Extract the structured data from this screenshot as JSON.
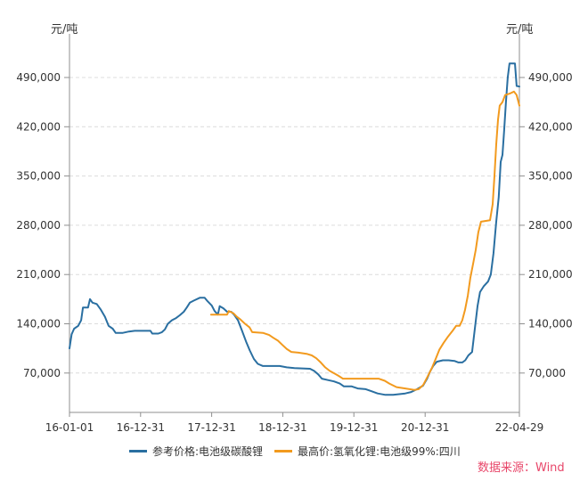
{
  "chart_data": {
    "type": "line",
    "ylabel": "元/吨",
    "y2label": "元/吨",
    "xlim": [
      "2016-01-01",
      "2022-04-29"
    ],
    "ylim": [
      14000,
      552000
    ],
    "x_tick_labels": [
      "16-01-01",
      "16-12-31",
      "17-12-31",
      "18-12-31",
      "19-12-31",
      "20-12-31",
      "22-04-29"
    ],
    "y_tick_labels": [
      "70,000",
      "140,000",
      "210,000",
      "280,000",
      "350,000",
      "420,000",
      "490,000"
    ],
    "grid": true,
    "legend": "bottom",
    "series": [
      {
        "name": "参考价格:电池级碳酸锂",
        "color": "#2a6fa1",
        "points": [
          [
            "2016-01-01",
            105000
          ],
          [
            "2016-01-12",
            125000
          ],
          [
            "2016-01-25",
            133000
          ],
          [
            "2016-02-15",
            137000
          ],
          [
            "2016-03-01",
            145000
          ],
          [
            "2016-03-10",
            163000
          ],
          [
            "2016-04-05",
            163000
          ],
          [
            "2016-04-15",
            175000
          ],
          [
            "2016-04-28",
            170000
          ],
          [
            "2016-05-20",
            168000
          ],
          [
            "2016-06-10",
            160000
          ],
          [
            "2016-07-01",
            150000
          ],
          [
            "2016-07-20",
            137000
          ],
          [
            "2016-08-10",
            133000
          ],
          [
            "2016-08-25",
            127000
          ],
          [
            "2016-10-01",
            127000
          ],
          [
            "2016-11-01",
            129000
          ],
          [
            "2016-12-01",
            130000
          ],
          [
            "2017-02-20",
            130000
          ],
          [
            "2017-03-01",
            126000
          ],
          [
            "2017-04-01",
            126000
          ],
          [
            "2017-04-20",
            128000
          ],
          [
            "2017-05-05",
            132000
          ],
          [
            "2017-05-20",
            140000
          ],
          [
            "2017-06-10",
            145000
          ],
          [
            "2017-07-01",
            148000
          ],
          [
            "2017-07-20",
            152000
          ],
          [
            "2017-08-10",
            157000
          ],
          [
            "2017-08-25",
            163000
          ],
          [
            "2017-09-10",
            170000
          ],
          [
            "2017-10-01",
            173000
          ],
          [
            "2017-11-01",
            177000
          ],
          [
            "2017-11-25",
            177000
          ],
          [
            "2017-12-10",
            172000
          ],
          [
            "2017-12-31",
            166000
          ],
          [
            "2018-01-15",
            158000
          ],
          [
            "2018-02-01",
            153000
          ],
          [
            "2018-02-10",
            165000
          ],
          [
            "2018-03-01",
            162000
          ],
          [
            "2018-03-20",
            157000
          ],
          [
            "2018-04-10",
            157000
          ],
          [
            "2018-04-25",
            153000
          ],
          [
            "2018-05-15",
            145000
          ],
          [
            "2018-06-05",
            130000
          ],
          [
            "2018-06-25",
            115000
          ],
          [
            "2018-07-15",
            102000
          ],
          [
            "2018-08-05",
            90000
          ],
          [
            "2018-08-25",
            83000
          ],
          [
            "2018-09-20",
            80000
          ],
          [
            "2018-12-15",
            80000
          ],
          [
            "2019-01-20",
            78000
          ],
          [
            "2019-03-01",
            77000
          ],
          [
            "2019-05-20",
            76000
          ],
          [
            "2019-06-10",
            73000
          ],
          [
            "2019-07-01",
            68000
          ],
          [
            "2019-07-20",
            62000
          ],
          [
            "2019-08-20",
            60000
          ],
          [
            "2019-09-20",
            58000
          ],
          [
            "2019-10-20",
            55000
          ],
          [
            "2019-11-10",
            51000
          ],
          [
            "2019-12-20",
            51000
          ],
          [
            "2020-01-20",
            48000
          ],
          [
            "2020-03-01",
            47000
          ],
          [
            "2020-04-01",
            44000
          ],
          [
            "2020-05-01",
            41000
          ],
          [
            "2020-06-10",
            39000
          ],
          [
            "2020-07-20",
            39000
          ],
          [
            "2020-08-20",
            40000
          ],
          [
            "2020-09-20",
            41000
          ],
          [
            "2020-10-20",
            43000
          ],
          [
            "2020-11-20",
            47000
          ],
          [
            "2020-12-20",
            52000
          ],
          [
            "2021-01-10",
            62000
          ],
          [
            "2021-01-25",
            72000
          ],
          [
            "2021-02-10",
            80000
          ],
          [
            "2021-03-01",
            86000
          ],
          [
            "2021-04-01",
            88000
          ],
          [
            "2021-05-01",
            88000
          ],
          [
            "2021-06-01",
            87000
          ],
          [
            "2021-06-20",
            85000
          ],
          [
            "2021-07-10",
            85000
          ],
          [
            "2021-07-25",
            88000
          ],
          [
            "2021-08-10",
            95000
          ],
          [
            "2021-08-29",
            100000
          ],
          [
            "2021-09-12",
            132000
          ],
          [
            "2021-09-26",
            165000
          ],
          [
            "2021-10-09",
            185000
          ],
          [
            "2021-10-27",
            193000
          ],
          [
            "2021-11-19",
            200000
          ],
          [
            "2021-12-03",
            210000
          ],
          [
            "2021-12-17",
            240000
          ],
          [
            "2021-12-31",
            285000
          ],
          [
            "2022-01-13",
            320000
          ],
          [
            "2022-01-23",
            370000
          ],
          [
            "2022-02-01",
            380000
          ],
          [
            "2022-02-10",
            415000
          ],
          [
            "2022-02-19",
            455000
          ],
          [
            "2022-02-28",
            490000
          ],
          [
            "2022-03-09",
            510000
          ],
          [
            "2022-04-06",
            510000
          ],
          [
            "2022-04-15",
            478000
          ],
          [
            "2022-04-29",
            477000
          ]
        ]
      },
      {
        "name": "最高价:氢氧化锂:电池级99%:四川",
        "color": "#f29a1e",
        "points": [
          [
            "2017-12-28",
            153000
          ],
          [
            "2018-03-20",
            153000
          ],
          [
            "2018-03-29",
            158000
          ],
          [
            "2018-04-21",
            155000
          ],
          [
            "2018-05-09",
            150000
          ],
          [
            "2018-05-28",
            146000
          ],
          [
            "2018-06-20",
            140000
          ],
          [
            "2018-07-13",
            135000
          ],
          [
            "2018-07-27",
            128000
          ],
          [
            "2018-09-20",
            127000
          ],
          [
            "2018-10-22",
            124000
          ],
          [
            "2018-11-13",
            120000
          ],
          [
            "2018-12-06",
            116000
          ],
          [
            "2018-12-29",
            110000
          ],
          [
            "2019-01-21",
            104000
          ],
          [
            "2019-02-13",
            100000
          ],
          [
            "2019-03-21",
            99000
          ],
          [
            "2019-05-06",
            97000
          ],
          [
            "2019-05-29",
            95000
          ],
          [
            "2019-06-21",
            91000
          ],
          [
            "2019-07-14",
            85000
          ],
          [
            "2019-08-06",
            78000
          ],
          [
            "2019-08-29",
            73000
          ],
          [
            "2019-09-25",
            69000
          ],
          [
            "2019-10-13",
            66000
          ],
          [
            "2019-11-05",
            62000
          ],
          [
            "2020-05-06",
            62000
          ],
          [
            "2020-06-07",
            59000
          ],
          [
            "2020-06-30",
            55000
          ],
          [
            "2020-08-06",
            50000
          ],
          [
            "2020-09-20",
            48000
          ],
          [
            "2020-11-05",
            46000
          ],
          [
            "2020-11-28",
            47000
          ],
          [
            "2020-12-21",
            53000
          ],
          [
            "2021-01-13",
            65000
          ],
          [
            "2021-02-05",
            78000
          ],
          [
            "2021-02-23",
            90000
          ],
          [
            "2021-03-14",
            103000
          ],
          [
            "2021-04-05",
            113000
          ],
          [
            "2021-04-28",
            122000
          ],
          [
            "2021-05-21",
            130000
          ],
          [
            "2021-06-08",
            137000
          ],
          [
            "2021-06-26",
            137000
          ],
          [
            "2021-07-10",
            145000
          ],
          [
            "2021-07-24",
            160000
          ],
          [
            "2021-08-07",
            180000
          ],
          [
            "2021-08-20",
            205000
          ],
          [
            "2021-09-03",
            225000
          ],
          [
            "2021-09-17",
            245000
          ],
          [
            "2021-09-30",
            270000
          ],
          [
            "2021-10-14",
            285000
          ],
          [
            "2021-11-29",
            287000
          ],
          [
            "2021-12-13",
            310000
          ],
          [
            "2021-12-22",
            350000
          ],
          [
            "2021-12-31",
            395000
          ],
          [
            "2022-01-09",
            430000
          ],
          [
            "2022-01-18",
            450000
          ],
          [
            "2022-02-01",
            455000
          ],
          [
            "2022-02-15",
            465000
          ],
          [
            "2022-03-10",
            467000
          ],
          [
            "2022-04-01",
            470000
          ],
          [
            "2022-04-15",
            465000
          ],
          [
            "2022-04-29",
            450000
          ]
        ]
      }
    ]
  },
  "source": "数据来源：Wind"
}
